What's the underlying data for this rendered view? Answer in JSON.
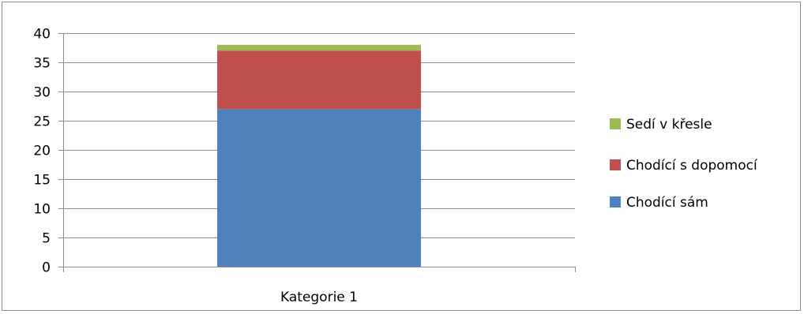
{
  "chart_data": {
    "type": "bar",
    "stacked": true,
    "categories": [
      "Kategorie 1"
    ],
    "series": [
      {
        "name": "Chodící sám",
        "values": [
          27
        ],
        "color": "#4f81bd"
      },
      {
        "name": "Chodící s dopomocí",
        "values": [
          10
        ],
        "color": "#c0504d"
      },
      {
        "name": "Sedí v křesle",
        "values": [
          1
        ],
        "color": "#9bbb59"
      }
    ],
    "ylim": [
      0,
      40
    ],
    "yticks": [
      "0",
      "5",
      "10",
      "15",
      "20",
      "25",
      "30",
      "35",
      "40"
    ],
    "grid": true,
    "legend_position": "right",
    "legend_order": [
      "Sedí v křesle",
      "Chodící s dopomocí",
      "Chodící sám"
    ]
  }
}
